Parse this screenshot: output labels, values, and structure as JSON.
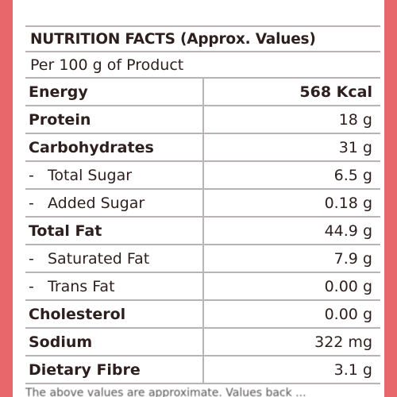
{
  "header": {
    "title": "NUTRITION FACTS (Approx. Values)",
    "subtitle": "Per 100 g of Product"
  },
  "rows": [
    {
      "label": "Energy",
      "value": "568 Kcal",
      "bold": true,
      "sub": false
    },
    {
      "label": "Protein",
      "value": "18 g",
      "bold": true,
      "sub": false
    },
    {
      "label": "Carbohydrates",
      "value": "31 g",
      "bold": true,
      "sub": false
    },
    {
      "prefix": "-",
      "label": "Total Sugar",
      "value": "6.5 g",
      "bold": false,
      "sub": true
    },
    {
      "prefix": "-",
      "label": "Added Sugar",
      "value": "0.18 g",
      "bold": false,
      "sub": true
    },
    {
      "label": "Total Fat",
      "value": "44.9 g",
      "bold": true,
      "sub": false
    },
    {
      "prefix": "-",
      "label": "Saturated Fat",
      "value": "7.9 g",
      "bold": false,
      "sub": true
    },
    {
      "prefix": "-",
      "label": "Trans Fat",
      "value": "0.00 g",
      "bold": false,
      "sub": true
    },
    {
      "label": "Cholesterol",
      "value": "0.00 g",
      "bold": true,
      "sub": false
    },
    {
      "label": "Sodium",
      "value": "322 mg",
      "bold": true,
      "sub": false
    },
    {
      "label": "Dietary Fibre",
      "value": "3.1 g",
      "bold": true,
      "sub": false
    }
  ],
  "footer": {
    "text": "The above values are approximate. Values back ..."
  },
  "colors": {
    "background": "#e8676a",
    "panel": "#ffffff",
    "text": "#2e1f1f",
    "rule": "#b9b4b4"
  }
}
